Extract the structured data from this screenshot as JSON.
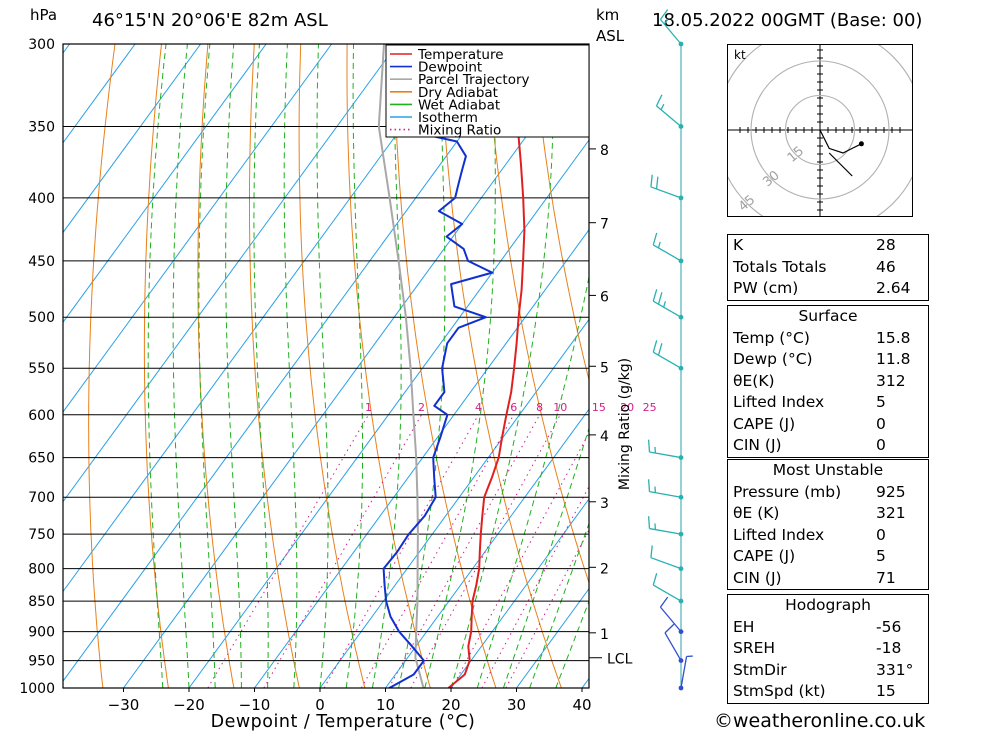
{
  "header": {
    "p_unit": "hPa",
    "location": "46°15'N  20°06'E  82m  ASL",
    "km_unit": "km",
    "asl_unit": "ASL",
    "datetime": "18.05.2022  00GMT  (Base: 00)"
  },
  "chart_data": {
    "type": "skew-t",
    "xlabel": "Dewpoint / Temperature (°C)",
    "x_ticks": [
      -30,
      -20,
      -10,
      0,
      10,
      20,
      30,
      40
    ],
    "pressure_levels": [
      300,
      350,
      400,
      450,
      500,
      550,
      600,
      650,
      700,
      750,
      800,
      850,
      900,
      950,
      1000
    ],
    "km_ticks": [
      {
        "km": "1",
        "p": 902
      },
      {
        "km": "2",
        "p": 798
      },
      {
        "km": "3",
        "p": 706
      },
      {
        "km": "4",
        "p": 623
      },
      {
        "km": "5",
        "p": 548
      },
      {
        "km": "6",
        "p": 480
      },
      {
        "km": "7",
        "p": 419
      },
      {
        "km": "8",
        "p": 365
      }
    ],
    "lcl": {
      "label": "LCL",
      "p": 945
    },
    "mixing_ratio_axis_label": "Mixing Ratio (g/kg)",
    "mixing_ratio_labels": [
      "1",
      "2",
      "4",
      "6",
      "8",
      "10",
      "15",
      "20",
      "25"
    ],
    "legend": [
      "Temperature",
      "Dewpoint",
      "Parcel Trajectory",
      "Dry Adiabat",
      "Wet Adiabat",
      "Isotherm",
      "Mixing Ratio"
    ],
    "colors": {
      "temperature": "#e02020",
      "dewpoint": "#1030d0",
      "parcel": "#a8a8a8",
      "dry_adiabat": "#e8801a",
      "wet_adiabat": "#20b020",
      "isotherm": "#2aa0e8",
      "mixing_ratio": "#d0208c"
    },
    "temperature": [
      [
        1000,
        19.6
      ],
      [
        975,
        20.6
      ],
      [
        950,
        19.8
      ],
      [
        925,
        18
      ],
      [
        900,
        16.8
      ],
      [
        875,
        15.2
      ],
      [
        850,
        13.6
      ],
      [
        825,
        12.4
      ],
      [
        800,
        11
      ],
      [
        775,
        9.2
      ],
      [
        750,
        7.4
      ],
      [
        725,
        5.6
      ],
      [
        700,
        3.8
      ],
      [
        675,
        2.8
      ],
      [
        650,
        1.6
      ],
      [
        625,
        -0.2
      ],
      [
        600,
        -2
      ],
      [
        575,
        -3.8
      ],
      [
        550,
        -6
      ],
      [
        525,
        -8.4
      ],
      [
        500,
        -11
      ],
      [
        475,
        -13.6
      ],
      [
        450,
        -16.6
      ],
      [
        425,
        -19.8
      ],
      [
        400,
        -23.6
      ],
      [
        375,
        -27.8
      ],
      [
        350,
        -32.4
      ],
      [
        325,
        -37.6
      ],
      [
        300,
        -43
      ]
    ],
    "dewpoint": [
      [
        1000,
        10.6
      ],
      [
        975,
        12.8
      ],
      [
        950,
        12.8
      ],
      [
        925,
        9.4
      ],
      [
        900,
        5.8
      ],
      [
        875,
        2.8
      ],
      [
        850,
        0.4
      ],
      [
        825,
        -1.6
      ],
      [
        800,
        -3.6
      ],
      [
        775,
        -3.4
      ],
      [
        750,
        -3.6
      ],
      [
        725,
        -3.2
      ],
      [
        700,
        -3.6
      ],
      [
        675,
        -6
      ],
      [
        650,
        -8.4
      ],
      [
        625,
        -9.6
      ],
      [
        600,
        -11
      ],
      [
        590,
        -14
      ],
      [
        575,
        -14
      ],
      [
        550,
        -17
      ],
      [
        525,
        -19
      ],
      [
        510,
        -19
      ],
      [
        500,
        -16
      ],
      [
        490,
        -22
      ],
      [
        470,
        -25
      ],
      [
        460,
        -20
      ],
      [
        450,
        -25
      ],
      [
        440,
        -27
      ],
      [
        430,
        -31
      ],
      [
        420,
        -30
      ],
      [
        410,
        -35
      ],
      [
        400,
        -34
      ],
      [
        390,
        -35
      ],
      [
        380,
        -36
      ],
      [
        370,
        -37
      ],
      [
        360,
        -40
      ],
      [
        355,
        -46
      ],
      [
        350,
        -46
      ],
      [
        300,
        -46
      ]
    ],
    "parcel": [
      [
        1000,
        15.8
      ],
      [
        945,
        11.2
      ],
      [
        900,
        8.4
      ],
      [
        850,
        5.2
      ],
      [
        800,
        1.6
      ],
      [
        750,
        -2.2
      ],
      [
        700,
        -6.4
      ],
      [
        650,
        -11
      ],
      [
        600,
        -16.2
      ],
      [
        550,
        -21.8
      ],
      [
        500,
        -28.2
      ],
      [
        450,
        -35.6
      ],
      [
        400,
        -44
      ],
      [
        350,
        -53.6
      ],
      [
        300,
        -62
      ]
    ],
    "wind_barbs": [
      {
        "p": 300,
        "dir": 320,
        "spd": 15
      },
      {
        "p": 350,
        "dir": 310,
        "spd": 15
      },
      {
        "p": 400,
        "dir": 290,
        "spd": 20
      },
      {
        "p": 450,
        "dir": 300,
        "spd": 15
      },
      {
        "p": 500,
        "dir": 300,
        "spd": 25
      },
      {
        "p": 550,
        "dir": 300,
        "spd": 20
      },
      {
        "p": 650,
        "dir": 280,
        "spd": 15
      },
      {
        "p": 700,
        "dir": 280,
        "spd": 15
      },
      {
        "p": 750,
        "dir": 280,
        "spd": 15
      },
      {
        "p": 800,
        "dir": 290,
        "spd": 10
      },
      {
        "p": 850,
        "dir": 300,
        "spd": 10
      },
      {
        "p": 900,
        "dir": 320,
        "spd": 10
      },
      {
        "p": 950,
        "dir": 330,
        "spd": 10
      },
      {
        "p": 1000,
        "dir": 10,
        "spd": 5
      }
    ],
    "hodograph": {
      "unit": "kt",
      "rings": [
        "15",
        "30",
        "45"
      ],
      "ring_values": [
        15,
        30,
        45
      ],
      "points": [
        [
          0,
          0
        ],
        [
          4,
          -8
        ],
        [
          10,
          -10
        ],
        [
          14,
          -8
        ],
        [
          18,
          -6
        ]
      ]
    }
  },
  "indices": {
    "top": [
      {
        "label": "K",
        "value": "28"
      },
      {
        "label": "Totals Totals",
        "value": "46"
      },
      {
        "label": "PW (cm)",
        "value": "2.64"
      }
    ],
    "surface": {
      "title": "Surface",
      "rows": [
        {
          "label": "Temp (°C)",
          "value": "15.8"
        },
        {
          "label": "Dewp (°C)",
          "value": "11.8"
        },
        {
          "label": "θE(K)",
          "value": "312"
        },
        {
          "label": "Lifted Index",
          "value": "5"
        },
        {
          "label": "CAPE (J)",
          "value": "0"
        },
        {
          "label": "CIN (J)",
          "value": "0"
        }
      ]
    },
    "most_unstable": {
      "title": "Most Unstable",
      "rows": [
        {
          "label": "Pressure (mb)",
          "value": "925"
        },
        {
          "label": "θE (K)",
          "value": "321"
        },
        {
          "label": "Lifted Index",
          "value": "0"
        },
        {
          "label": "CAPE (J)",
          "value": "5"
        },
        {
          "label": "CIN (J)",
          "value": "71"
        }
      ]
    },
    "hodograph": {
      "title": "Hodograph",
      "rows": [
        {
          "label": "EH",
          "value": "-56"
        },
        {
          "label": "SREH",
          "value": "-18"
        },
        {
          "label": "StmDir",
          "value": "331°"
        },
        {
          "label": "StmSpd (kt)",
          "value": "15"
        }
      ]
    }
  },
  "footer": "©weatheronline.co.uk"
}
